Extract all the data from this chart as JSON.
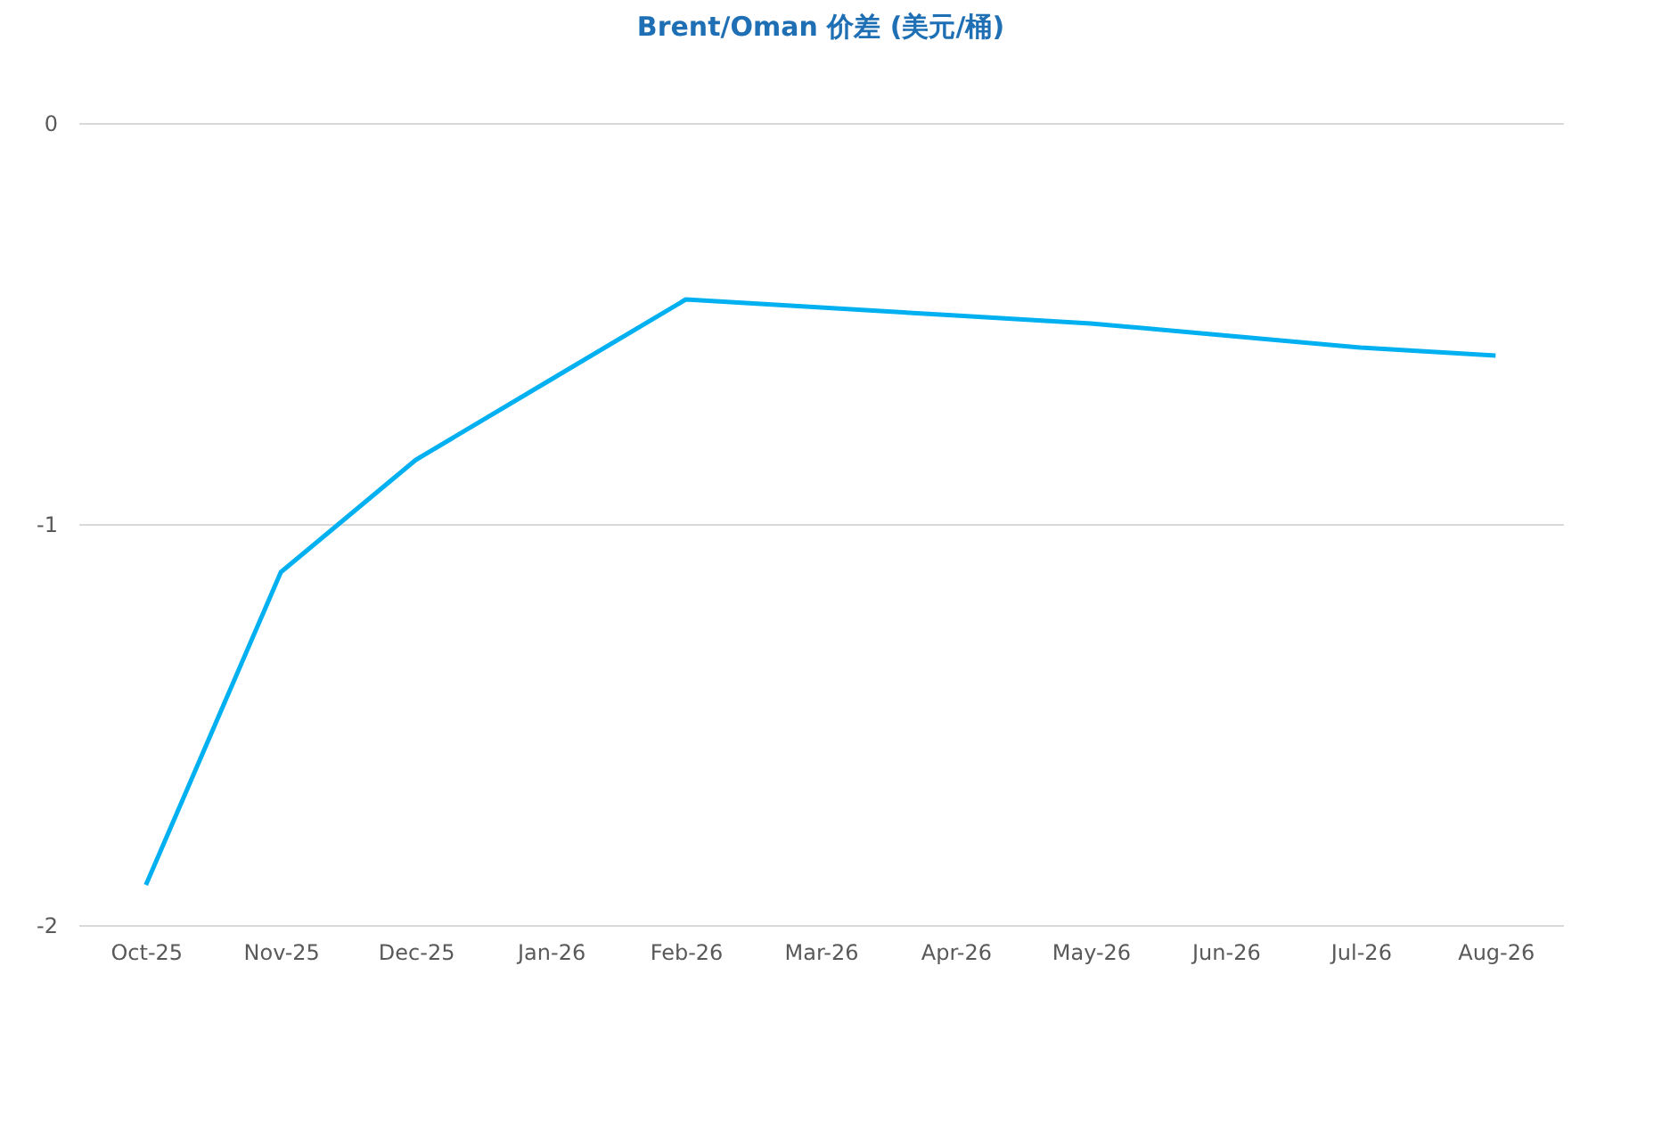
{
  "chart_data": {
    "type": "line",
    "title": "Brent/Oman 价差 (美元/桶)",
    "categories": [
      "Oct-25",
      "Nov-25",
      "Dec-25",
      "Jan-26",
      "Feb-26",
      "Mar-26",
      "Apr-26",
      "May-26",
      "Jun-26",
      "Jul-26",
      "Aug-26"
    ],
    "series": [
      {
        "color": "#00b0f0",
        "values": [
          -1.9,
          -1.12,
          -0.84,
          -0.64,
          -0.44,
          -0.46,
          -0.48,
          -0.5,
          -0.53,
          -0.56,
          -0.58
        ]
      }
    ],
    "ylim": [
      -2,
      0
    ],
    "yticks": [
      -2,
      -1,
      0
    ],
    "grid": "y",
    "marker": "none",
    "line_style": "solid"
  }
}
